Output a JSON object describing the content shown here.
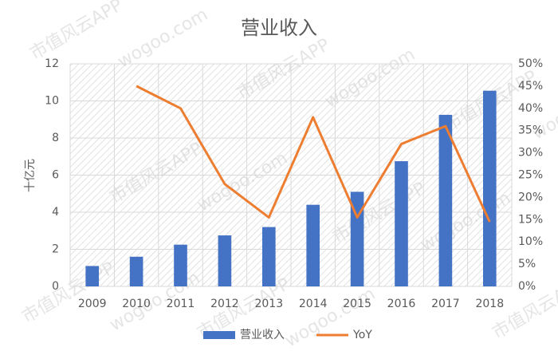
{
  "chart_data": {
    "type": "bar",
    "title": "营业收入",
    "y_label": "十亿元",
    "watermark": [
      "市值风云APP",
      "wogoo.com"
    ],
    "categories": [
      "2009",
      "2010",
      "2011",
      "2012",
      "2013",
      "2014",
      "2015",
      "2016",
      "2017",
      "2018"
    ],
    "series": [
      {
        "name": "营业收入",
        "color": "#4472c4",
        "values": [
          1.1,
          1.6,
          2.25,
          2.75,
          3.2,
          4.4,
          5.1,
          6.75,
          9.25,
          10.55
        ]
      },
      {
        "name": "YoY",
        "color": "#ed7d31",
        "type": "line",
        "axis": "y2",
        "values": [
          null,
          45,
          40,
          23,
          15.5,
          38,
          15.5,
          32,
          36,
          14.5
        ]
      }
    ],
    "ylim": [
      0,
      12
    ],
    "yticks": [
      0,
      2,
      4,
      6,
      8,
      10,
      12
    ],
    "y2lim": [
      0,
      50
    ],
    "y2ticks": [
      {
        "value": 0,
        "label": "0%"
      },
      {
        "value": 5,
        "label": "5%"
      },
      {
        "value": 10,
        "label": "10%"
      },
      {
        "value": 15,
        "label": "15%"
      },
      {
        "value": 20,
        "label": "20%"
      },
      {
        "value": 25,
        "label": "25%"
      },
      {
        "value": 30,
        "label": "30%"
      },
      {
        "value": 35,
        "label": "35%"
      },
      {
        "value": 40,
        "label": "40%"
      },
      {
        "value": 45,
        "label": "45%"
      },
      {
        "value": 50,
        "label": "50%"
      }
    ],
    "grid": true,
    "legend": "bottom"
  }
}
